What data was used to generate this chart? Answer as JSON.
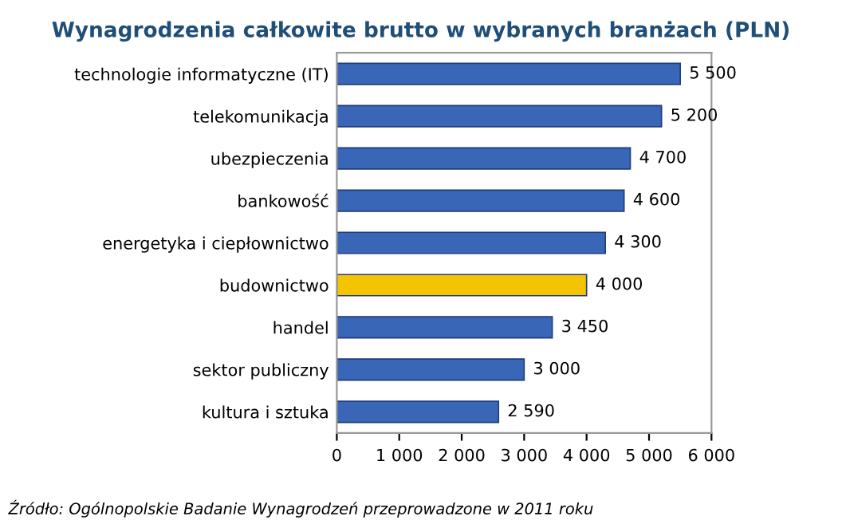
{
  "chart_data": {
    "type": "bar",
    "orientation": "horizontal",
    "title": "Wynagrodzenia całkowite brutto w wybranych branżach (PLN)",
    "categories": [
      "technologie informatyczne (IT)",
      "telekomunikacja",
      "ubezpieczenia",
      "bankowość",
      "energetyka i ciepłownictwo",
      "budownictwo",
      "handel",
      "sektor publiczny",
      "kultura i sztuka"
    ],
    "values": [
      5500,
      5200,
      4700,
      4600,
      4300,
      4000,
      3450,
      3000,
      2590
    ],
    "value_labels": [
      "5 500",
      "5 200",
      "4 700",
      "4 600",
      "4 300",
      "4 000",
      "3 450",
      "3 000",
      "2 590"
    ],
    "colors": [
      "#3a66b8",
      "#3a66b8",
      "#3a66b8",
      "#3a66b8",
      "#3a66b8",
      "#f5c400",
      "#3a66b8",
      "#3a66b8",
      "#3a66b8"
    ],
    "xlim": [
      0,
      6000
    ],
    "xticks": [
      0,
      {
        "value": 1000,
        "label": "1 000"
      },
      {
        "value": 2000,
        "label": "2 000"
      },
      {
        "value": 3000,
        "label": "3 000"
      },
      {
        "value": 4000,
        "label": "4 000"
      },
      {
        "value": 5000,
        "label": "5 000"
      },
      {
        "value": 6000,
        "label": "6 000"
      }
    ],
    "annotations": [
      "Źródło: Ogólnopolskie Badanie Wynagrodzeń przeprowadzone w 2011 roku"
    ]
  }
}
